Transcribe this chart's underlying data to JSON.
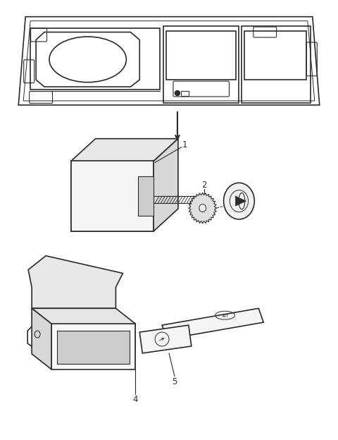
{
  "bg_color": "#ffffff",
  "line_color": "#2a2a2a",
  "fig_width": 4.8,
  "fig_height": 6.24,
  "dpi": 100
}
